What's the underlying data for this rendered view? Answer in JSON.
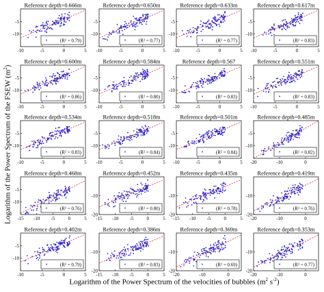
{
  "figure": {
    "xlabel_main": "Logarithm of the Power Spectrum of the velocities of bubbles (m",
    "xlabel_exp1": "2",
    "xlabel_mid": " s",
    "xlabel_exp2": "-2",
    "xlabel_end": ")",
    "ylabel_main": "Logarithm of the Power Spectrum of the FSEW (m",
    "ylabel_exp": "2",
    "ylabel_end": ")"
  },
  "chart_data": [
    {
      "type": "scatter",
      "title": "Reference depth=0.666m",
      "r2_label": "(R² = 0.79)",
      "r2": 0.79,
      "xlim": [
        -10,
        5
      ],
      "ylim": [
        -15,
        0
      ],
      "xticks": [
        -10,
        -5,
        0,
        5
      ],
      "yticks": [
        -10,
        -5
      ],
      "fit": {
        "x": [
          -10,
          5
        ],
        "y": [
          -11.5,
          -0.5
        ]
      }
    },
    {
      "type": "scatter",
      "title": "Reference depth=0.650m",
      "r2_label": "(R² = 0.77)",
      "r2": 0.77,
      "xlim": [
        -10,
        5
      ],
      "ylim": [
        -15,
        0
      ],
      "xticks": [
        -10,
        -5,
        0,
        5
      ],
      "yticks": [
        -10,
        -5
      ],
      "fit": {
        "x": [
          -10,
          5
        ],
        "y": [
          -11.5,
          -0.5
        ]
      }
    },
    {
      "type": "scatter",
      "title": "Reference depth=0.633m",
      "r2_label": "(R² = 0.77)",
      "r2": 0.77,
      "xlim": [
        -10,
        5
      ],
      "ylim": [
        -15,
        0
      ],
      "xticks": [
        -10,
        -5,
        0,
        5
      ],
      "yticks": [
        -10,
        -5
      ],
      "fit": {
        "x": [
          -10,
          5
        ],
        "y": [
          -11.5,
          -0.5
        ]
      }
    },
    {
      "type": "scatter",
      "title": "Reference depth=0.617m",
      "r2_label": "(R² = 0.83)",
      "r2": 0.83,
      "xlim": [
        -10,
        5
      ],
      "ylim": [
        -15,
        0
      ],
      "xticks": [
        -10,
        -5,
        0,
        5
      ],
      "yticks": [
        -10,
        -5
      ],
      "fit": {
        "x": [
          -10,
          5
        ],
        "y": [
          -11.5,
          -0.5
        ]
      }
    },
    {
      "type": "scatter",
      "title": "Reference depth=0.600m",
      "r2_label": "(R² = 0.86)",
      "r2": 0.86,
      "xlim": [
        -10,
        5
      ],
      "ylim": [
        -15,
        0
      ],
      "xticks": [
        -10,
        -5,
        0,
        5
      ],
      "yticks": [
        -10,
        -5
      ],
      "fit": {
        "x": [
          -10,
          5
        ],
        "y": [
          -11.5,
          -0.5
        ]
      }
    },
    {
      "type": "scatter",
      "title": "Reference depth=0.584m",
      "r2_label": "(R² = 0.80)",
      "r2": 0.8,
      "xlim": [
        -10,
        5
      ],
      "ylim": [
        -15,
        0
      ],
      "xticks": [
        -10,
        -5,
        0,
        5
      ],
      "yticks": [
        -10,
        -5
      ],
      "fit": {
        "x": [
          -10,
          5
        ],
        "y": [
          -11.5,
          -0.5
        ]
      }
    },
    {
      "type": "scatter",
      "title": "Reference depth=0.567",
      "r2_label": "(R² = 0.83)",
      "r2": 0.83,
      "xlim": [
        -10,
        5
      ],
      "ylim": [
        -15,
        0
      ],
      "xticks": [
        -10,
        -5,
        0,
        5
      ],
      "yticks": [
        -10,
        -5
      ],
      "fit": {
        "x": [
          -10,
          5
        ],
        "y": [
          -11.5,
          -0.5
        ]
      }
    },
    {
      "type": "scatter",
      "title": "Reference depth=0.551m",
      "r2_label": "(R² = 0.83)",
      "r2": 0.83,
      "xlim": [
        -10,
        5
      ],
      "ylim": [
        -15,
        0
      ],
      "xticks": [
        -10,
        -5,
        0,
        5
      ],
      "yticks": [
        -10,
        -5
      ],
      "fit": {
        "x": [
          -10,
          5
        ],
        "y": [
          -11.5,
          -0.5
        ]
      }
    },
    {
      "type": "scatter",
      "title": "Reference depth=0.534m",
      "r2_label": "(R² = 0.83)",
      "r2": 0.83,
      "xlim": [
        -10,
        5
      ],
      "ylim": [
        -15,
        0
      ],
      "xticks": [
        -10,
        -5,
        0,
        5
      ],
      "yticks": [
        -10,
        -5
      ],
      "fit": {
        "x": [
          -10,
          5
        ],
        "y": [
          -11.5,
          -0.5
        ]
      }
    },
    {
      "type": "scatter",
      "title": "Reference depth=0.518m",
      "r2_label": "(R² = 0.84)",
      "r2": 0.84,
      "xlim": [
        -10,
        5
      ],
      "ylim": [
        -15,
        0
      ],
      "xticks": [
        -10,
        -5,
        0,
        5
      ],
      "yticks": [
        -10,
        -5
      ],
      "fit": {
        "x": [
          -10,
          5
        ],
        "y": [
          -11.5,
          -0.5
        ]
      }
    },
    {
      "type": "scatter",
      "title": "Reference depth=0.501m",
      "r2_label": "(R² = 0.84)",
      "r2": 0.84,
      "xlim": [
        -10,
        5
      ],
      "ylim": [
        -15,
        0
      ],
      "xticks": [
        -10,
        -5,
        0,
        5
      ],
      "yticks": [
        -10,
        -5
      ],
      "fit": {
        "x": [
          -10,
          5
        ],
        "y": [
          -11.5,
          -0.5
        ]
      }
    },
    {
      "type": "scatter",
      "title": "Reference depth=0.485m",
      "r2_label": "(R² = 0.82)",
      "r2": 0.82,
      "xlim": [
        -20,
        5
      ],
      "ylim": [
        -15,
        0
      ],
      "xticks": [
        -20,
        -10,
        0
      ],
      "yticks": [
        -10,
        -5
      ],
      "fit": {
        "x": [
          -20,
          5
        ],
        "y": [
          -15,
          0
        ]
      }
    },
    {
      "type": "scatter",
      "title": "Reference depth=0.468m",
      "r2_label": "(R² = 0.76)",
      "r2": 0.76,
      "xlim": [
        -15,
        5
      ],
      "ylim": [
        -15,
        0
      ],
      "xticks": [
        -15,
        -10,
        -5,
        0,
        5
      ],
      "yticks": [
        -10,
        -5
      ],
      "fit": {
        "x": [
          -15,
          5
        ],
        "y": [
          -14.5,
          -1.5
        ]
      }
    },
    {
      "type": "scatter",
      "title": "Reference depth=0.452m",
      "r2_label": "(R² = 0.80)",
      "r2": 0.8,
      "xlim": [
        -15,
        5
      ],
      "ylim": [
        -20,
        0
      ],
      "xticks": [
        -15,
        -10,
        -5,
        0,
        5
      ],
      "yticks": [
        -20,
        -10
      ],
      "fit": {
        "x": [
          -15,
          5
        ],
        "y": [
          -16,
          -1.5
        ]
      }
    },
    {
      "type": "scatter",
      "title": "Reference depth=0.435m",
      "r2_label": "(R² = 0.78)",
      "r2": 0.78,
      "xlim": [
        -15,
        5
      ],
      "ylim": [
        -20,
        0
      ],
      "xticks": [
        -15,
        -10,
        -5,
        0,
        5
      ],
      "yticks": [
        -20,
        -10
      ],
      "fit": {
        "x": [
          -15,
          5
        ],
        "y": [
          -16,
          -1.5
        ]
      }
    },
    {
      "type": "scatter",
      "title": "Reference depth=0.419m",
      "r2_label": "(R² = 0.76)",
      "r2": 0.76,
      "xlim": [
        -20,
        5
      ],
      "ylim": [
        -20,
        0
      ],
      "xticks": [
        -20,
        -10,
        0
      ],
      "yticks": [
        -20,
        -10
      ],
      "fit": {
        "x": [
          -20,
          5
        ],
        "y": [
          -18,
          -1
        ]
      }
    },
    {
      "type": "scatter",
      "title": "Reference depth=0.402m",
      "r2_label": "(R² = 0.79)",
      "r2": 0.79,
      "xlim": [
        -10,
        5
      ],
      "ylim": [
        -15,
        0
      ],
      "xticks": [
        -10,
        -5,
        0,
        5
      ],
      "yticks": [
        -10,
        -5
      ],
      "fit": {
        "x": [
          -10,
          5
        ],
        "y": [
          -11.5,
          -0.5
        ]
      }
    },
    {
      "type": "scatter",
      "title": "Reference depth=0.386m",
      "r2_label": "(R² = 0.83)",
      "r2": 0.83,
      "xlim": [
        -15,
        5
      ],
      "ylim": [
        -20,
        0
      ],
      "xticks": [
        -15,
        -10,
        -5,
        0,
        5
      ],
      "yticks": [
        -20,
        -10
      ],
      "fit": {
        "x": [
          -15,
          5
        ],
        "y": [
          -16,
          -1.5
        ]
      }
    },
    {
      "type": "scatter",
      "title": "Reference depth=0.369m",
      "r2_label": "(R² = 0.69)",
      "r2": 0.69,
      "xlim": [
        -20,
        5
      ],
      "ylim": [
        -20,
        0
      ],
      "xticks": [
        -20,
        -10,
        0
      ],
      "yticks": [
        -20,
        -10
      ],
      "fit": {
        "x": [
          -20,
          5
        ],
        "y": [
          -18,
          -1
        ]
      }
    },
    {
      "type": "scatter",
      "title": "Reference depth=0.353m",
      "r2_label": "(R² = 0.77)",
      "r2": 0.77,
      "xlim": [
        -20,
        5
      ],
      "ylim": [
        -20,
        0
      ],
      "xticks": [
        -20,
        -10,
        0
      ],
      "yticks": [
        -20,
        -10
      ],
      "fit": {
        "x": [
          -20,
          5
        ],
        "y": [
          -18,
          -1
        ]
      }
    }
  ],
  "colors": {
    "points": "#1f1fd6",
    "fit": "#e0304a",
    "axes": "#000000"
  }
}
